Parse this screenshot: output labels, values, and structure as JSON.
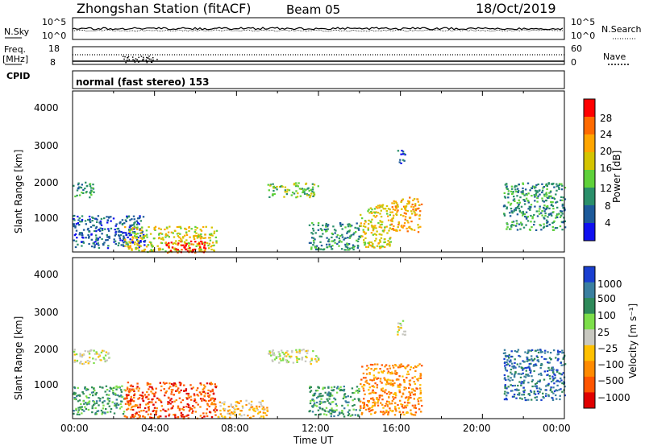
{
  "header": {
    "station": "Zhongshan Station (fitACF)",
    "beam": "Beam 05",
    "date": "18/Oct/2019"
  },
  "params_panel": {
    "nsky_label": "N.Sky",
    "nsky_ticks": [
      "10^5",
      "10^0"
    ],
    "nsearch_label": "N.Search",
    "nsearch_ticks": [
      "10^5",
      "10^0"
    ],
    "freq_label": "Freq.",
    "freq_unit": "[MHz]",
    "freq_ticks": [
      "18",
      "8"
    ],
    "nave_label": "Nave",
    "nave_ticks": [
      "60",
      "0"
    ],
    "cpid_label": "CPID",
    "cpid_text": "normal (fast stereo) 153"
  },
  "power_panel": {
    "ylabel": "Slant Range [km]",
    "yticks": [
      "4000",
      "3000",
      "2000",
      "1000"
    ],
    "colorbar_label": "Power [dB]",
    "colorbar_ticks": [
      "28",
      "24",
      "20",
      "16",
      "12",
      "8",
      "4"
    ],
    "colorbar_colors": [
      "#ff0000",
      "#ff6a00",
      "#ffa500",
      "#d4c400",
      "#5fd13a",
      "#2a8f6a",
      "#1d5a9a",
      "#1010f0"
    ]
  },
  "velocity_panel": {
    "ylabel": "Slant Range [km]",
    "yticks": [
      "4000",
      "3000",
      "2000",
      "1000"
    ],
    "colorbar_label": "Velocity [m s⁻¹]",
    "colorbar_ticks": [
      "1000",
      "500",
      "100",
      "25",
      "−25",
      "−100",
      "−500",
      "−1000"
    ],
    "colorbar_colors": [
      "#1a3fd0",
      "#3a7fa0",
      "#2e8a5a",
      "#7dde4a",
      "#c8c8c0",
      "#ffc000",
      "#ff8a00",
      "#ff5500",
      "#e00000"
    ]
  },
  "time_axis": {
    "ticks": [
      "00:00",
      "04:00",
      "08:00",
      "12:00",
      "16:00",
      "20:00",
      "00:00"
    ],
    "label": "Time UT"
  },
  "chart_data": [
    {
      "type": "heatmap",
      "x_range_hours": [
        0,
        24
      ],
      "y_range_km": [
        180,
        4600
      ],
      "echo_regions": [
        {
          "t": [
            0.0,
            1.0
          ],
          "r": [
            1700,
            2150
          ],
          "level": 5
        },
        {
          "t": [
            0.0,
            3.5
          ],
          "r": [
            300,
            1200
          ],
          "level": 6
        },
        {
          "t": [
            2.5,
            7.0
          ],
          "r": [
            200,
            900
          ],
          "level": 3
        },
        {
          "t": [
            4.5,
            6.5
          ],
          "r": [
            180,
            500
          ],
          "level": 0
        },
        {
          "t": [
            9.5,
            12.0
          ],
          "r": [
            1700,
            2100
          ],
          "level": 4
        },
        {
          "t": [
            11.5,
            14.0
          ],
          "r": [
            250,
            1000
          ],
          "level": 5
        },
        {
          "t": [
            14.0,
            15.5
          ],
          "r": [
            300,
            1500
          ],
          "level": 3
        },
        {
          "t": [
            15.5,
            17.0
          ],
          "r": [
            750,
            1700
          ],
          "level": 2
        },
        {
          "t": [
            15.8,
            16.2
          ],
          "r": [
            2600,
            3000
          ],
          "level": 6
        },
        {
          "t": [
            21.0,
            24.0
          ],
          "r": [
            800,
            2100
          ],
          "level": 5
        }
      ]
    },
    {
      "type": "heatmap",
      "x_range_hours": [
        0,
        24
      ],
      "y_range_km": [
        180,
        4600
      ],
      "echo_regions": [
        {
          "t": [
            0.0,
            1.8
          ],
          "r": [
            1700,
            2100
          ],
          "level": 4
        },
        {
          "t": [
            0.0,
            2.5
          ],
          "r": [
            300,
            1100
          ],
          "level": 2
        },
        {
          "t": [
            2.5,
            7.0
          ],
          "r": [
            200,
            1200
          ],
          "level": 7
        },
        {
          "t": [
            7.0,
            9.5
          ],
          "r": [
            200,
            700
          ],
          "level": 5
        },
        {
          "t": [
            9.5,
            12.0
          ],
          "r": [
            1700,
            2100
          ],
          "level": 4
        },
        {
          "t": [
            11.5,
            14.0
          ],
          "r": [
            250,
            1100
          ],
          "level": 2
        },
        {
          "t": [
            14.0,
            17.0
          ],
          "r": [
            300,
            1700
          ],
          "level": 6
        },
        {
          "t": [
            15.8,
            16.2
          ],
          "r": [
            2500,
            3000
          ],
          "level": 4
        },
        {
          "t": [
            21.0,
            24.0
          ],
          "r": [
            700,
            2100
          ],
          "level": 1
        }
      ]
    }
  ]
}
